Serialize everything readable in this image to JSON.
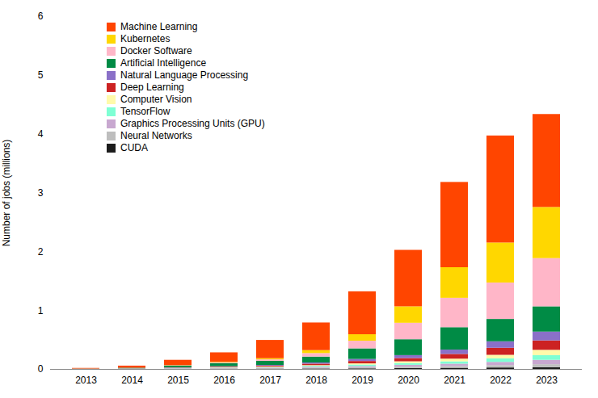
{
  "chart_data": {
    "type": "bar",
    "stacked": true,
    "ylabel": "Number of jobs (millions)",
    "categories": [
      "2013",
      "2014",
      "2015",
      "2016",
      "2017",
      "2018",
      "2019",
      "2020",
      "2021",
      "2022",
      "2023"
    ],
    "series": [
      {
        "name": "CUDA",
        "color": "#1C1C1C",
        "values": [
          0.0,
          0.001,
          0.002,
          0.003,
          0.005,
          0.008,
          0.01,
          0.015,
          0.02,
          0.025,
          0.03
        ]
      },
      {
        "name": "Neural Networks",
        "color": "#BEBEBE",
        "values": [
          0.001,
          0.002,
          0.005,
          0.008,
          0.01,
          0.015,
          0.02,
          0.025,
          0.03,
          0.04,
          0.05
        ]
      },
      {
        "name": "Graphics Processing Units (GPU)",
        "color": "#C8A8D0",
        "values": [
          0.001,
          0.002,
          0.005,
          0.008,
          0.01,
          0.015,
          0.02,
          0.03,
          0.04,
          0.055,
          0.075
        ]
      },
      {
        "name": "TensorFlow",
        "color": "#7FFFD4",
        "values": [
          0.0,
          0.0,
          0.002,
          0.005,
          0.008,
          0.015,
          0.025,
          0.03,
          0.04,
          0.06,
          0.08
        ]
      },
      {
        "name": "Computer Vision",
        "color": "#FFFAAA",
        "values": [
          0.001,
          0.002,
          0.003,
          0.005,
          0.008,
          0.012,
          0.02,
          0.03,
          0.045,
          0.06,
          0.09
        ]
      },
      {
        "name": "Deep Learning",
        "color": "#CC2222",
        "values": [
          0.001,
          0.002,
          0.005,
          0.01,
          0.015,
          0.025,
          0.04,
          0.055,
          0.08,
          0.12,
          0.16
        ]
      },
      {
        "name": "Natural Language Processing",
        "color": "#8A70C8",
        "values": [
          0.001,
          0.002,
          0.005,
          0.008,
          0.012,
          0.02,
          0.035,
          0.05,
          0.075,
          0.11,
          0.15
        ]
      },
      {
        "name": "Artificial Intelligence",
        "color": "#008B45",
        "values": [
          0.002,
          0.01,
          0.03,
          0.05,
          0.07,
          0.1,
          0.18,
          0.27,
          0.38,
          0.38,
          0.43
        ]
      },
      {
        "name": "Docker Software",
        "color": "#FFB6C8",
        "values": [
          0.0,
          0.0,
          0.005,
          0.015,
          0.025,
          0.06,
          0.13,
          0.28,
          0.5,
          0.62,
          0.82
        ]
      },
      {
        "name": "Kubernetes",
        "color": "#FFD700",
        "values": [
          0.0,
          0.0,
          0.003,
          0.01,
          0.02,
          0.05,
          0.11,
          0.28,
          0.52,
          0.68,
          0.87
        ]
      },
      {
        "name": "Machine Learning",
        "color": "#FF4500",
        "values": [
          0.01,
          0.035,
          0.09,
          0.16,
          0.31,
          0.47,
          0.73,
          0.96,
          1.45,
          1.82,
          1.58
        ]
      }
    ],
    "ylim": [
      0,
      6
    ],
    "yticks": [
      0,
      1,
      2,
      3,
      4,
      5,
      6
    ],
    "grid": false,
    "legend": "upper left"
  }
}
